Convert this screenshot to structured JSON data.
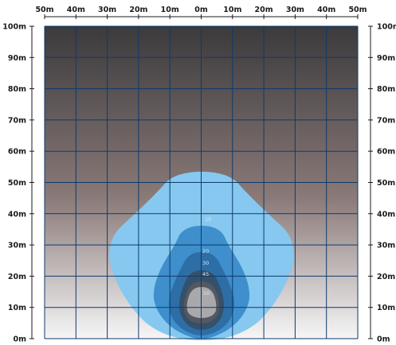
{
  "diagram": {
    "top_axis_labels": [
      "50m",
      "40m",
      "30m",
      "20m",
      "10m",
      "0m",
      "10m",
      "20m",
      "30m",
      "40m",
      "50m"
    ],
    "left_axis_labels": [
      "100m",
      "90m",
      "80m",
      "70m",
      "60m",
      "50m",
      "40m",
      "30m",
      "20m",
      "10m",
      "0m"
    ],
    "right_axis_labels": [
      "100m",
      "90m",
      "80m",
      "70m",
      "60m",
      "50m",
      "40m",
      "30m",
      "20m",
      "10m",
      "0m"
    ],
    "contour_labels": [
      "10",
      "20",
      "30",
      "45",
      "50"
    ],
    "colors": {
      "background_top": "#3b3a3c",
      "background_mid": "#8a7a78",
      "background_bottom": "#f6f6f7",
      "grid_line": "#0e3a6b",
      "contour_10": "#86c8ef",
      "contour_20": "#3e8fcc",
      "contour_30": "#2d6ea6",
      "contour_45": "#35506a",
      "contour_50_ring": "#545861",
      "contour_50_core": "#a9a9ab"
    }
  }
}
